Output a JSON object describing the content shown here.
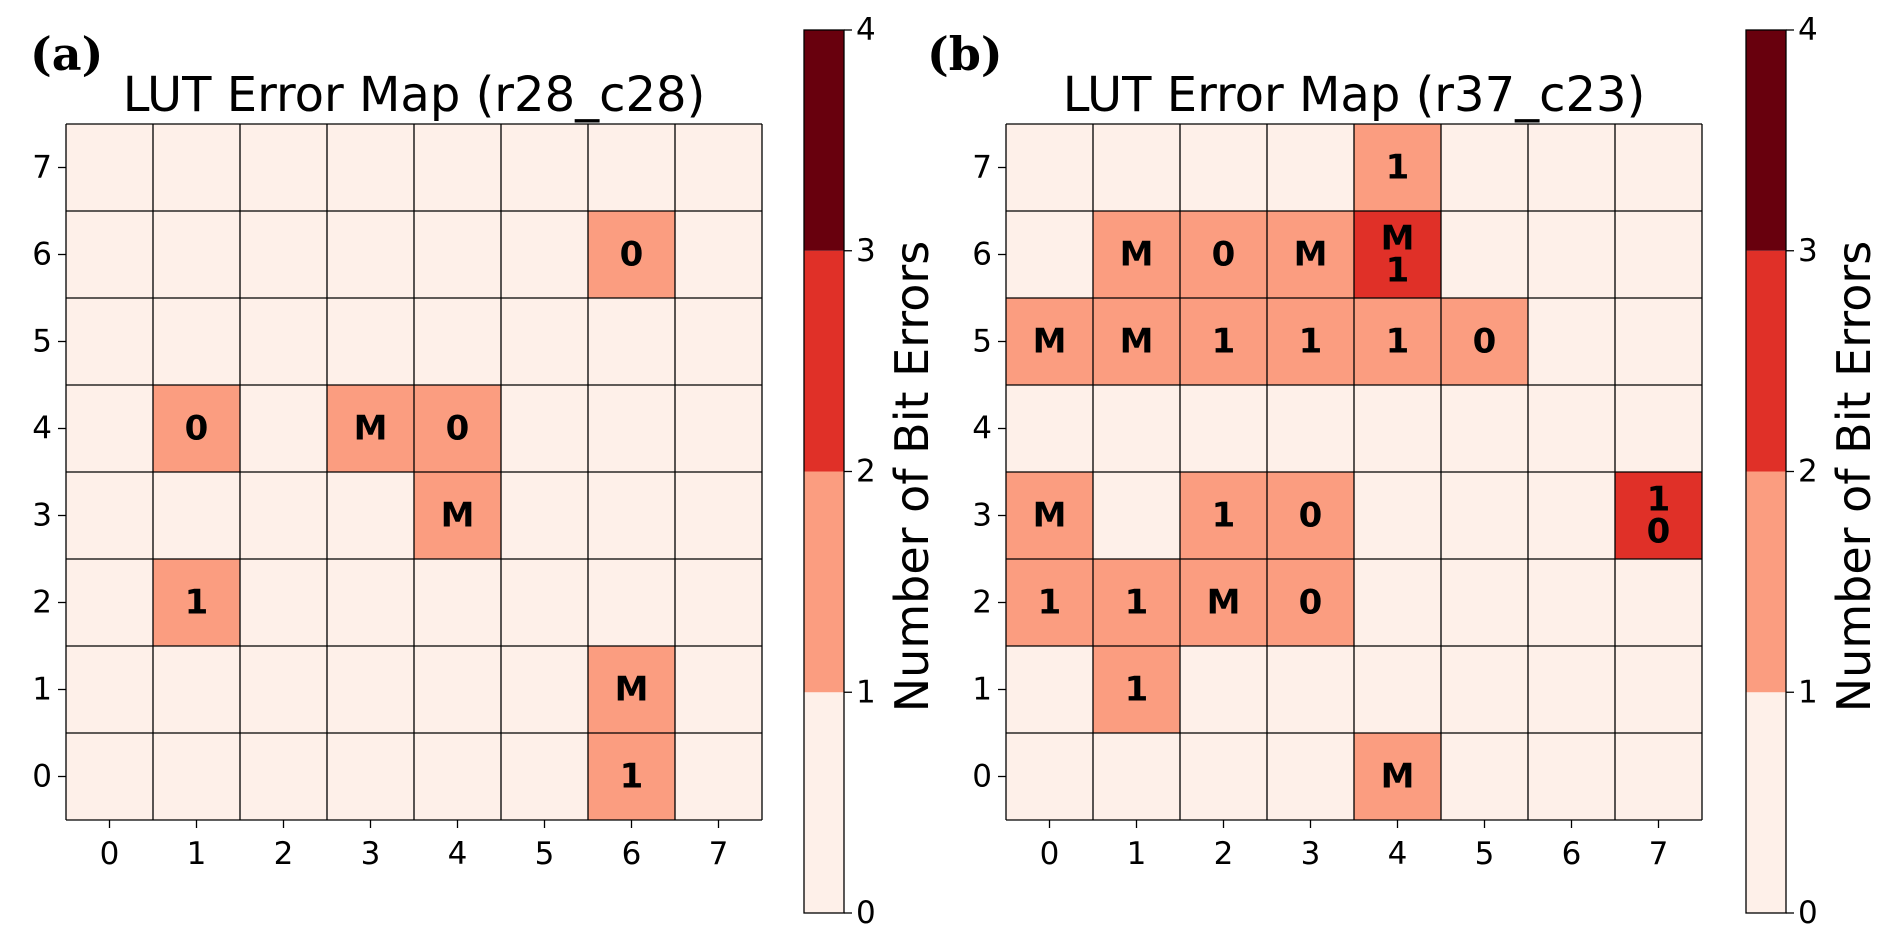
{
  "chart_data": [
    {
      "type": "heatmap",
      "panel_label": "(a)",
      "title": "LUT Error Map (r28_c28)",
      "x_ticks": [
        "0",
        "1",
        "2",
        "3",
        "4",
        "5",
        "6",
        "7"
      ],
      "y_ticks": [
        "0",
        "1",
        "2",
        "3",
        "4",
        "5",
        "6",
        "7"
      ],
      "grid": true,
      "colorbar": {
        "label": "Number of Bit Errors",
        "ticks": [
          "0",
          "1",
          "2",
          "3",
          "4"
        ],
        "range": [
          0,
          4
        ],
        "levels": [
          {
            "from": 0,
            "to": 1,
            "color": "#fef0e9"
          },
          {
            "from": 1,
            "to": 2,
            "color": "#fb9d80"
          },
          {
            "from": 2,
            "to": 3,
            "color": "#e03028"
          },
          {
            "from": 3,
            "to": 4,
            "color": "#68000d"
          }
        ]
      },
      "cells": [
        {
          "x": 6,
          "y": 6,
          "errors": 1,
          "labels": [
            "0"
          ]
        },
        {
          "x": 1,
          "y": 4,
          "errors": 1,
          "labels": [
            "0"
          ]
        },
        {
          "x": 3,
          "y": 4,
          "errors": 1,
          "labels": [
            "M"
          ]
        },
        {
          "x": 4,
          "y": 4,
          "errors": 1,
          "labels": [
            "0"
          ]
        },
        {
          "x": 4,
          "y": 3,
          "errors": 1,
          "labels": [
            "M"
          ]
        },
        {
          "x": 1,
          "y": 2,
          "errors": 1,
          "labels": [
            "1"
          ]
        },
        {
          "x": 6,
          "y": 1,
          "errors": 1,
          "labels": [
            "M"
          ]
        },
        {
          "x": 6,
          "y": 0,
          "errors": 1,
          "labels": [
            "1"
          ]
        }
      ]
    },
    {
      "type": "heatmap",
      "panel_label": "(b)",
      "title": "LUT Error Map (r37_c23)",
      "x_ticks": [
        "0",
        "1",
        "2",
        "3",
        "4",
        "5",
        "6",
        "7"
      ],
      "y_ticks": [
        "0",
        "1",
        "2",
        "3",
        "4",
        "5",
        "6",
        "7"
      ],
      "grid": true,
      "colorbar": {
        "label": "Number of Bit Errors",
        "ticks": [
          "0",
          "1",
          "2",
          "3",
          "4"
        ],
        "range": [
          0,
          4
        ],
        "levels": [
          {
            "from": 0,
            "to": 1,
            "color": "#fef0e9"
          },
          {
            "from": 1,
            "to": 2,
            "color": "#fb9d80"
          },
          {
            "from": 2,
            "to": 3,
            "color": "#e03028"
          },
          {
            "from": 3,
            "to": 4,
            "color": "#68000d"
          }
        ]
      },
      "cells": [
        {
          "x": 4,
          "y": 7,
          "errors": 1,
          "labels": [
            "1"
          ]
        },
        {
          "x": 1,
          "y": 6,
          "errors": 1,
          "labels": [
            "M"
          ]
        },
        {
          "x": 2,
          "y": 6,
          "errors": 1,
          "labels": [
            "0"
          ]
        },
        {
          "x": 3,
          "y": 6,
          "errors": 1,
          "labels": [
            "M"
          ]
        },
        {
          "x": 4,
          "y": 6,
          "errors": 2,
          "labels": [
            "M",
            "1"
          ]
        },
        {
          "x": 0,
          "y": 5,
          "errors": 1,
          "labels": [
            "M"
          ]
        },
        {
          "x": 1,
          "y": 5,
          "errors": 1,
          "labels": [
            "M"
          ]
        },
        {
          "x": 2,
          "y": 5,
          "errors": 1,
          "labels": [
            "1"
          ]
        },
        {
          "x": 3,
          "y": 5,
          "errors": 1,
          "labels": [
            "1"
          ]
        },
        {
          "x": 4,
          "y": 5,
          "errors": 1,
          "labels": [
            "1"
          ]
        },
        {
          "x": 5,
          "y": 5,
          "errors": 1,
          "labels": [
            "0"
          ]
        },
        {
          "x": 0,
          "y": 3,
          "errors": 1,
          "labels": [
            "M"
          ]
        },
        {
          "x": 2,
          "y": 3,
          "errors": 1,
          "labels": [
            "1"
          ]
        },
        {
          "x": 3,
          "y": 3,
          "errors": 1,
          "labels": [
            "0"
          ]
        },
        {
          "x": 7,
          "y": 3,
          "errors": 2,
          "labels": [
            "1",
            "0"
          ]
        },
        {
          "x": 0,
          "y": 2,
          "errors": 1,
          "labels": [
            "1"
          ]
        },
        {
          "x": 1,
          "y": 2,
          "errors": 1,
          "labels": [
            "1"
          ]
        },
        {
          "x": 2,
          "y": 2,
          "errors": 1,
          "labels": [
            "M"
          ]
        },
        {
          "x": 3,
          "y": 2,
          "errors": 1,
          "labels": [
            "0"
          ]
        },
        {
          "x": 1,
          "y": 1,
          "errors": 1,
          "labels": [
            "1"
          ]
        },
        {
          "x": 4,
          "y": 0,
          "errors": 1,
          "labels": [
            "M"
          ]
        }
      ]
    }
  ]
}
